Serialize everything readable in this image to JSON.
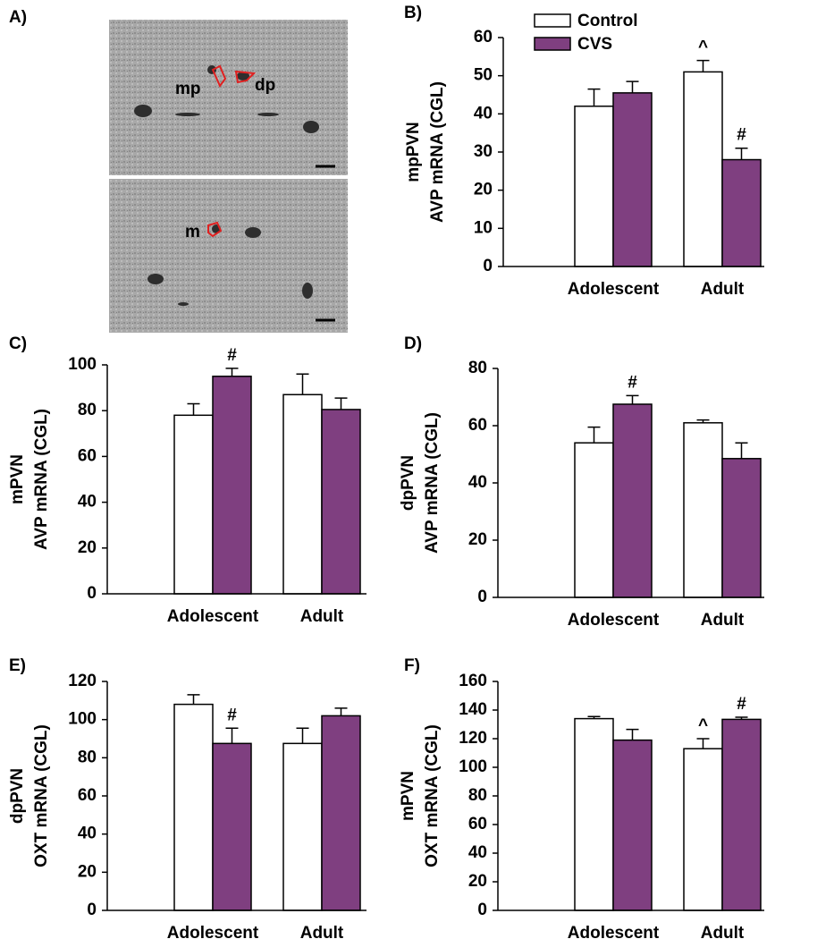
{
  "panel_a": {
    "label": "A)",
    "regions": [
      "mp",
      "dp",
      "m"
    ]
  },
  "chart_data": [
    {
      "type": "bar",
      "panel": "B)",
      "ylabel": [
        "mpPVN",
        "AVP mRNA (CGL)"
      ],
      "categories": [
        "Adolescent",
        "Adult"
      ],
      "ylim": [
        0,
        60
      ],
      "yticks": [
        0,
        10,
        20,
        30,
        40,
        50,
        60
      ],
      "series": [
        {
          "name": "Control",
          "color": "#ffffff",
          "values": [
            42,
            51
          ],
          "errors": [
            4.5,
            3
          ],
          "marks": [
            null,
            "^"
          ]
        },
        {
          "name": "CVS",
          "color": "#7f3f80",
          "values": [
            45.5,
            28
          ],
          "errors": [
            3,
            3
          ],
          "marks": [
            null,
            "#"
          ]
        }
      ]
    },
    {
      "type": "bar",
      "panel": "C)",
      "ylabel": [
        "mPVN",
        "AVP mRNA (CGL)"
      ],
      "categories": [
        "Adolescent",
        "Adult"
      ],
      "ylim": [
        0,
        100
      ],
      "yticks": [
        0,
        20,
        40,
        60,
        80,
        100
      ],
      "series": [
        {
          "color": "#ffffff",
          "values": [
            78,
            87
          ],
          "errors": [
            5,
            9
          ],
          "marks": [
            null,
            null
          ]
        },
        {
          "color": "#7f3f80",
          "values": [
            95,
            80.5
          ],
          "errors": [
            3.5,
            5
          ],
          "marks": [
            "#",
            null
          ]
        }
      ]
    },
    {
      "type": "bar",
      "panel": "D)",
      "ylabel": [
        "dpPVN",
        "AVP mRNA (CGL)"
      ],
      "categories": [
        "Adolescent",
        "Adult"
      ],
      "ylim": [
        0,
        80
      ],
      "yticks": [
        0,
        20,
        40,
        60,
        80
      ],
      "series": [
        {
          "color": "#ffffff",
          "values": [
            54,
            61
          ],
          "errors": [
            5.5,
            1
          ],
          "marks": [
            null,
            null
          ]
        },
        {
          "color": "#7f3f80",
          "values": [
            67.5,
            48.5
          ],
          "errors": [
            3,
            5.5
          ],
          "marks": [
            "#",
            null
          ]
        }
      ]
    },
    {
      "type": "bar",
      "panel": "E)",
      "ylabel": [
        "dpPVN",
        "OXT mRNA (CGL)"
      ],
      "categories": [
        "Adolescent",
        "Adult"
      ],
      "ylim": [
        0,
        120
      ],
      "yticks": [
        0,
        20,
        40,
        60,
        80,
        100,
        120
      ],
      "series": [
        {
          "color": "#ffffff",
          "values": [
            108,
            87.5
          ],
          "errors": [
            5,
            8
          ],
          "marks": [
            null,
            null
          ]
        },
        {
          "color": "#7f3f80",
          "values": [
            87.5,
            102
          ],
          "errors": [
            8,
            4
          ],
          "marks": [
            "#",
            null
          ]
        }
      ]
    },
    {
      "type": "bar",
      "panel": "F)",
      "ylabel": [
        "mPVN",
        "OXT mRNA (CGL)"
      ],
      "categories": [
        "Adolescent",
        "Adult"
      ],
      "ylim": [
        0,
        160
      ],
      "yticks": [
        0,
        20,
        40,
        60,
        80,
        100,
        120,
        140,
        160
      ],
      "series": [
        {
          "color": "#ffffff",
          "values": [
            134,
            113
          ],
          "errors": [
            1.5,
            7
          ],
          "marks": [
            null,
            "^"
          ]
        },
        {
          "color": "#7f3f80",
          "values": [
            119,
            133.5
          ],
          "errors": [
            7.5,
            1.5
          ],
          "marks": [
            null,
            "#"
          ]
        }
      ]
    }
  ]
}
